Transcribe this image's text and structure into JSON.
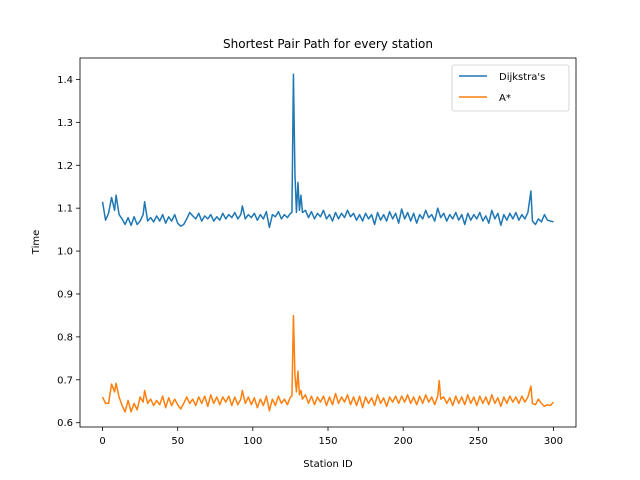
{
  "chart_data": {
    "type": "line",
    "title": "Shortest Pair Path for every station",
    "xlabel": "Station ID",
    "ylabel": "Time",
    "xlim": [
      -15,
      315
    ],
    "ylim": [
      0.59,
      1.45
    ],
    "xticks": [
      0,
      50,
      100,
      150,
      200,
      250,
      300
    ],
    "yticks": [
      0.6,
      0.7,
      0.8,
      0.9,
      1.0,
      1.1,
      1.2,
      1.3,
      1.4
    ],
    "ytick_labels": [
      "0.6",
      "0.7",
      "0.8",
      "0.9",
      "1.0",
      "1.1",
      "1.2",
      "1.3",
      "1.4"
    ],
    "legend_position": "top-right",
    "grid": false,
    "series": [
      {
        "name": "Dijkstra's",
        "color": "#1f77b4",
        "points": [
          [
            0,
            1.115
          ],
          [
            2,
            1.072
          ],
          [
            4,
            1.088
          ],
          [
            6,
            1.125
          ],
          [
            8,
            1.095
          ],
          [
            9,
            1.13
          ],
          [
            11,
            1.085
          ],
          [
            13,
            1.075
          ],
          [
            15,
            1.062
          ],
          [
            17,
            1.078
          ],
          [
            19,
            1.06
          ],
          [
            21,
            1.08
          ],
          [
            23,
            1.062
          ],
          [
            25,
            1.07
          ],
          [
            27,
            1.085
          ],
          [
            28,
            1.115
          ],
          [
            30,
            1.07
          ],
          [
            32,
            1.078
          ],
          [
            34,
            1.068
          ],
          [
            36,
            1.082
          ],
          [
            38,
            1.07
          ],
          [
            40,
            1.085
          ],
          [
            42,
            1.065
          ],
          [
            44,
            1.08
          ],
          [
            46,
            1.07
          ],
          [
            48,
            1.085
          ],
          [
            50,
            1.065
          ],
          [
            52,
            1.058
          ],
          [
            54,
            1.062
          ],
          [
            56,
            1.075
          ],
          [
            58,
            1.09
          ],
          [
            60,
            1.082
          ],
          [
            62,
            1.075
          ],
          [
            64,
            1.088
          ],
          [
            66,
            1.07
          ],
          [
            68,
            1.082
          ],
          [
            70,
            1.075
          ],
          [
            72,
            1.085
          ],
          [
            74,
            1.07
          ],
          [
            76,
            1.08
          ],
          [
            78,
            1.072
          ],
          [
            80,
            1.088
          ],
          [
            82,
            1.075
          ],
          [
            84,
            1.085
          ],
          [
            86,
            1.078
          ],
          [
            88,
            1.09
          ],
          [
            90,
            1.075
          ],
          [
            92,
            1.085
          ],
          [
            93,
            1.105
          ],
          [
            95,
            1.075
          ],
          [
            97,
            1.085
          ],
          [
            99,
            1.078
          ],
          [
            101,
            1.088
          ],
          [
            103,
            1.072
          ],
          [
            105,
            1.085
          ],
          [
            107,
            1.075
          ],
          [
            109,
            1.092
          ],
          [
            111,
            1.055
          ],
          [
            113,
            1.085
          ],
          [
            115,
            1.08
          ],
          [
            117,
            1.092
          ],
          [
            119,
            1.075
          ],
          [
            121,
            1.085
          ],
          [
            123,
            1.078
          ],
          [
            125,
            1.088
          ],
          [
            126,
            1.09
          ],
          [
            127,
            1.412
          ],
          [
            128,
            1.18
          ],
          [
            129,
            1.09
          ],
          [
            130,
            1.16
          ],
          [
            131,
            1.095
          ],
          [
            132,
            1.13
          ],
          [
            133,
            1.09
          ],
          [
            135,
            1.095
          ],
          [
            137,
            1.078
          ],
          [
            139,
            1.092
          ],
          [
            141,
            1.075
          ],
          [
            143,
            1.088
          ],
          [
            145,
            1.08
          ],
          [
            147,
            1.095
          ],
          [
            149,
            1.075
          ],
          [
            151,
            1.085
          ],
          [
            153,
            1.07
          ],
          [
            155,
            1.09
          ],
          [
            157,
            1.075
          ],
          [
            159,
            1.088
          ],
          [
            161,
            1.078
          ],
          [
            163,
            1.095
          ],
          [
            165,
            1.08
          ],
          [
            167,
            1.088
          ],
          [
            169,
            1.072
          ],
          [
            171,
            1.085
          ],
          [
            173,
            1.07
          ],
          [
            175,
            1.088
          ],
          [
            177,
            1.075
          ],
          [
            179,
            1.085
          ],
          [
            181,
            1.062
          ],
          [
            183,
            1.09
          ],
          [
            185,
            1.072
          ],
          [
            187,
            1.085
          ],
          [
            189,
            1.07
          ],
          [
            191,
            1.092
          ],
          [
            193,
            1.075
          ],
          [
            195,
            1.088
          ],
          [
            197,
            1.065
          ],
          [
            199,
            1.098
          ],
          [
            201,
            1.075
          ],
          [
            203,
            1.09
          ],
          [
            205,
            1.07
          ],
          [
            207,
            1.088
          ],
          [
            209,
            1.065
          ],
          [
            211,
            1.085
          ],
          [
            213,
            1.075
          ],
          [
            215,
            1.095
          ],
          [
            217,
            1.078
          ],
          [
            219,
            1.085
          ],
          [
            221,
            1.07
          ],
          [
            223,
            1.1
          ],
          [
            225,
            1.078
          ],
          [
            227,
            1.088
          ],
          [
            229,
            1.07
          ],
          [
            231,
            1.085
          ],
          [
            233,
            1.075
          ],
          [
            235,
            1.09
          ],
          [
            237,
            1.072
          ],
          [
            239,
            1.085
          ],
          [
            241,
            1.062
          ],
          [
            243,
            1.088
          ],
          [
            245,
            1.072
          ],
          [
            247,
            1.085
          ],
          [
            249,
            1.075
          ],
          [
            251,
            1.09
          ],
          [
            253,
            1.07
          ],
          [
            255,
            1.082
          ],
          [
            257,
            1.065
          ],
          [
            259,
            1.095
          ],
          [
            261,
            1.075
          ],
          [
            263,
            1.088
          ],
          [
            265,
            1.06
          ],
          [
            267,
            1.085
          ],
          [
            269,
            1.072
          ],
          [
            271,
            1.088
          ],
          [
            273,
            1.075
          ],
          [
            275,
            1.09
          ],
          [
            277,
            1.072
          ],
          [
            279,
            1.085
          ],
          [
            281,
            1.075
          ],
          [
            283,
            1.09
          ],
          [
            285,
            1.14
          ],
          [
            286,
            1.07
          ],
          [
            288,
            1.062
          ],
          [
            290,
            1.075
          ],
          [
            292,
            1.068
          ],
          [
            294,
            1.085
          ],
          [
            296,
            1.072
          ],
          [
            298,
            1.07
          ],
          [
            300,
            1.068
          ]
        ]
      },
      {
        "name": "A*",
        "color": "#ff7f0e",
        "points": [
          [
            0,
            0.66
          ],
          [
            2,
            0.645
          ],
          [
            4,
            0.645
          ],
          [
            6,
            0.69
          ],
          [
            8,
            0.672
          ],
          [
            9,
            0.692
          ],
          [
            11,
            0.66
          ],
          [
            13,
            0.64
          ],
          [
            15,
            0.625
          ],
          [
            17,
            0.652
          ],
          [
            19,
            0.625
          ],
          [
            21,
            0.645
          ],
          [
            23,
            0.63
          ],
          [
            25,
            0.66
          ],
          [
            27,
            0.648
          ],
          [
            28,
            0.675
          ],
          [
            30,
            0.645
          ],
          [
            32,
            0.655
          ],
          [
            34,
            0.64
          ],
          [
            36,
            0.652
          ],
          [
            38,
            0.642
          ],
          [
            40,
            0.662
          ],
          [
            42,
            0.635
          ],
          [
            44,
            0.658
          ],
          [
            46,
            0.64
          ],
          [
            48,
            0.655
          ],
          [
            50,
            0.642
          ],
          [
            52,
            0.632
          ],
          [
            54,
            0.645
          ],
          [
            56,
            0.66
          ],
          [
            58,
            0.645
          ],
          [
            60,
            0.655
          ],
          [
            62,
            0.64
          ],
          [
            64,
            0.66
          ],
          [
            66,
            0.645
          ],
          [
            68,
            0.662
          ],
          [
            70,
            0.638
          ],
          [
            72,
            0.665
          ],
          [
            74,
            0.645
          ],
          [
            76,
            0.66
          ],
          [
            78,
            0.642
          ],
          [
            80,
            0.66
          ],
          [
            82,
            0.648
          ],
          [
            84,
            0.662
          ],
          [
            86,
            0.64
          ],
          [
            88,
            0.66
          ],
          [
            90,
            0.642
          ],
          [
            92,
            0.655
          ],
          [
            93,
            0.675
          ],
          [
            95,
            0.645
          ],
          [
            97,
            0.66
          ],
          [
            99,
            0.642
          ],
          [
            101,
            0.658
          ],
          [
            103,
            0.635
          ],
          [
            105,
            0.655
          ],
          [
            107,
            0.64
          ],
          [
            109,
            0.662
          ],
          [
            111,
            0.628
          ],
          [
            113,
            0.655
          ],
          [
            115,
            0.64
          ],
          [
            117,
            0.662
          ],
          [
            119,
            0.645
          ],
          [
            121,
            0.655
          ],
          [
            123,
            0.642
          ],
          [
            125,
            0.66
          ],
          [
            126,
            0.662
          ],
          [
            127,
            0.85
          ],
          [
            128,
            0.71
          ],
          [
            129,
            0.672
          ],
          [
            130,
            0.72
          ],
          [
            131,
            0.665
          ],
          [
            132,
            0.675
          ],
          [
            133,
            0.655
          ],
          [
            135,
            0.665
          ],
          [
            137,
            0.645
          ],
          [
            139,
            0.662
          ],
          [
            141,
            0.642
          ],
          [
            143,
            0.66
          ],
          [
            145,
            0.648
          ],
          [
            147,
            0.662
          ],
          [
            149,
            0.64
          ],
          [
            151,
            0.66
          ],
          [
            153,
            0.642
          ],
          [
            155,
            0.668
          ],
          [
            157,
            0.645
          ],
          [
            159,
            0.66
          ],
          [
            161,
            0.648
          ],
          [
            163,
            0.665
          ],
          [
            165,
            0.642
          ],
          [
            167,
            0.66
          ],
          [
            169,
            0.64
          ],
          [
            171,
            0.662
          ],
          [
            173,
            0.635
          ],
          [
            175,
            0.66
          ],
          [
            177,
            0.645
          ],
          [
            179,
            0.658
          ],
          [
            181,
            0.64
          ],
          [
            183,
            0.665
          ],
          [
            185,
            0.645
          ],
          [
            187,
            0.658
          ],
          [
            189,
            0.638
          ],
          [
            191,
            0.66
          ],
          [
            193,
            0.648
          ],
          [
            195,
            0.662
          ],
          [
            197,
            0.645
          ],
          [
            199,
            0.662
          ],
          [
            201,
            0.648
          ],
          [
            203,
            0.665
          ],
          [
            205,
            0.645
          ],
          [
            207,
            0.66
          ],
          [
            209,
            0.642
          ],
          [
            211,
            0.662
          ],
          [
            213,
            0.645
          ],
          [
            215,
            0.665
          ],
          [
            217,
            0.648
          ],
          [
            219,
            0.66
          ],
          [
            221,
            0.642
          ],
          [
            223,
            0.662
          ],
          [
            224,
            0.698
          ],
          [
            225,
            0.655
          ],
          [
            227,
            0.66
          ],
          [
            229,
            0.645
          ],
          [
            231,
            0.658
          ],
          [
            233,
            0.64
          ],
          [
            235,
            0.662
          ],
          [
            237,
            0.645
          ],
          [
            239,
            0.66
          ],
          [
            241,
            0.642
          ],
          [
            243,
            0.665
          ],
          [
            245,
            0.645
          ],
          [
            247,
            0.66
          ],
          [
            249,
            0.64
          ],
          [
            251,
            0.662
          ],
          [
            253,
            0.645
          ],
          [
            255,
            0.66
          ],
          [
            257,
            0.642
          ],
          [
            259,
            0.665
          ],
          [
            261,
            0.645
          ],
          [
            263,
            0.658
          ],
          [
            265,
            0.638
          ],
          [
            267,
            0.66
          ],
          [
            269,
            0.645
          ],
          [
            271,
            0.662
          ],
          [
            273,
            0.648
          ],
          [
            275,
            0.66
          ],
          [
            277,
            0.645
          ],
          [
            279,
            0.662
          ],
          [
            281,
            0.648
          ],
          [
            283,
            0.66
          ],
          [
            285,
            0.685
          ],
          [
            286,
            0.645
          ],
          [
            288,
            0.642
          ],
          [
            290,
            0.655
          ],
          [
            292,
            0.645
          ],
          [
            294,
            0.638
          ],
          [
            296,
            0.642
          ],
          [
            298,
            0.64
          ],
          [
            300,
            0.648
          ]
        ]
      }
    ]
  }
}
